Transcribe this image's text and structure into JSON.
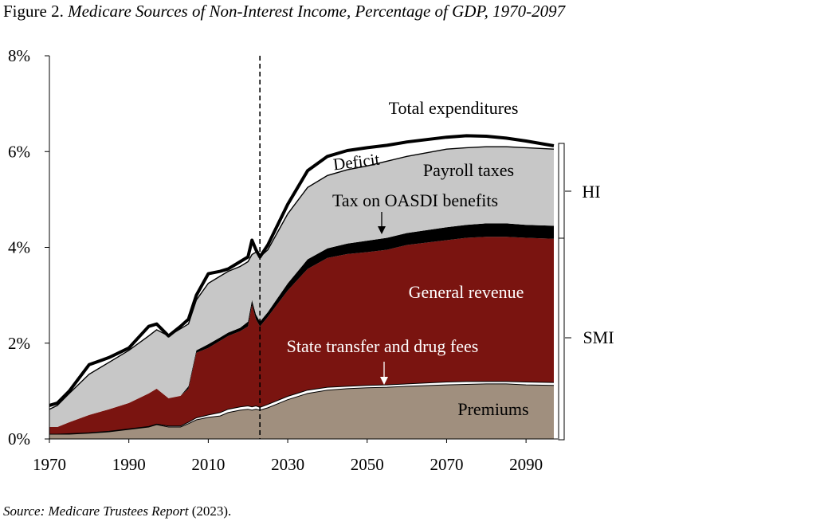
{
  "figure": {
    "label": "Figure 2.",
    "title": "Medicare Sources of Non-Interest Income, Percentage of GDP, 1970-2097"
  },
  "source": {
    "label": "Source:",
    "name": "Medicare Trustees Report",
    "year": "(2023)."
  },
  "chart_data": {
    "type": "area",
    "title": "Medicare Sources of Non-Interest Income, Percentage of GDP, 1970-2097",
    "xlabel": "",
    "ylabel": "",
    "xlim": [
      1970,
      2098
    ],
    "ylim": [
      0,
      8
    ],
    "x_ticks": [
      "1970",
      "1990",
      "2010",
      "2030",
      "2050",
      "2070",
      "2090"
    ],
    "y_ticks": [
      "0%",
      "2%",
      "4%",
      "6%",
      "8%"
    ],
    "grid": false,
    "projection_start_line": 2023,
    "x": [
      1970,
      1972,
      1975,
      1980,
      1985,
      1990,
      1995,
      1997,
      2000,
      2003,
      2005,
      2007,
      2010,
      2013,
      2015,
      2018,
      2020,
      2021,
      2022,
      2023,
      2025,
      2030,
      2035,
      2040,
      2045,
      2050,
      2055,
      2060,
      2070,
      2075,
      2080,
      2085,
      2090,
      2097
    ],
    "cumulative_levels": [
      {
        "name": "Premiums",
        "values": [
          0.1,
          0.1,
          0.1,
          0.12,
          0.15,
          0.2,
          0.25,
          0.3,
          0.25,
          0.25,
          0.32,
          0.4,
          0.45,
          0.48,
          0.55,
          0.6,
          0.62,
          0.6,
          0.62,
          0.6,
          0.65,
          0.82,
          0.95,
          1.02,
          1.05,
          1.07,
          1.08,
          1.1,
          1.13,
          1.14,
          1.15,
          1.15,
          1.13,
          1.12
        ]
      },
      {
        "name": "State transfer and drug fees",
        "values": [
          0.1,
          0.1,
          0.11,
          0.13,
          0.16,
          0.21,
          0.26,
          0.31,
          0.27,
          0.27,
          0.35,
          0.44,
          0.5,
          0.55,
          0.62,
          0.67,
          0.69,
          0.67,
          0.69,
          0.66,
          0.72,
          0.89,
          1.02,
          1.08,
          1.1,
          1.12,
          1.13,
          1.15,
          1.19,
          1.2,
          1.2,
          1.2,
          1.19,
          1.18
        ]
      },
      {
        "name": "General revenue",
        "values": [
          0.25,
          0.25,
          0.35,
          0.5,
          0.62,
          0.75,
          0.95,
          1.05,
          0.85,
          0.9,
          1.05,
          1.8,
          1.9,
          2.05,
          2.15,
          2.25,
          2.35,
          2.8,
          2.5,
          2.35,
          2.55,
          3.1,
          3.55,
          3.78,
          3.86,
          3.9,
          3.95,
          4.05,
          4.15,
          4.2,
          4.22,
          4.22,
          4.2,
          4.18
        ]
      },
      {
        "name": "Tax on OASDI benefits",
        "values": [
          0.25,
          0.25,
          0.35,
          0.5,
          0.62,
          0.75,
          0.95,
          1.05,
          0.85,
          0.9,
          1.1,
          1.85,
          1.98,
          2.12,
          2.22,
          2.32,
          2.45,
          2.9,
          2.6,
          2.45,
          2.65,
          3.25,
          3.75,
          3.98,
          4.08,
          4.14,
          4.2,
          4.3,
          4.42,
          4.47,
          4.5,
          4.5,
          4.47,
          4.45
        ]
      },
      {
        "name": "Payroll taxes",
        "values": [
          0.62,
          0.7,
          0.95,
          1.35,
          1.6,
          1.85,
          2.15,
          2.28,
          2.15,
          2.3,
          2.4,
          2.9,
          3.25,
          3.4,
          3.5,
          3.6,
          3.7,
          3.85,
          3.9,
          3.8,
          3.95,
          4.7,
          5.25,
          5.5,
          5.62,
          5.7,
          5.8,
          5.9,
          6.05,
          6.08,
          6.1,
          6.1,
          6.08,
          6.05
        ]
      }
    ],
    "total_expenditures": [
      0.7,
      0.75,
      1.0,
      1.55,
      1.7,
      1.9,
      2.35,
      2.4,
      2.15,
      2.35,
      2.5,
      3.0,
      3.45,
      3.5,
      3.55,
      3.7,
      3.8,
      4.15,
      3.95,
      3.8,
      4.05,
      4.9,
      5.6,
      5.9,
      6.02,
      6.08,
      6.13,
      6.2,
      6.3,
      6.33,
      6.32,
      6.28,
      6.22,
      6.12
    ]
  },
  "colors": {
    "premiums": "#a08f7e",
    "state_transfer": "#ffffff",
    "general_revenue": "#7a1410",
    "tax_on_oasdi": "#000000",
    "payroll_taxes": "#c7c7c7",
    "deficit": "#ffffff",
    "total_line": "#000000"
  },
  "annotations": {
    "total": "Total expenditures",
    "deficit": "Deficit",
    "payroll": "Payroll taxes",
    "oasdi": "Tax on OASDI benefits",
    "general": "General revenue",
    "state": "State transfer and drug fees",
    "premiums": "Premiums",
    "hi": "HI",
    "smi": "SMI"
  }
}
